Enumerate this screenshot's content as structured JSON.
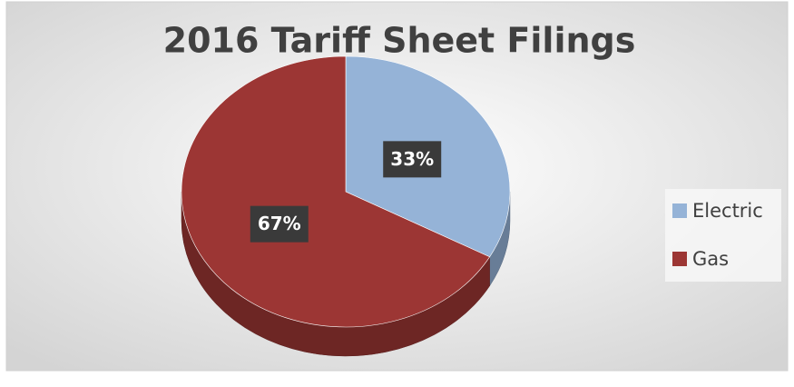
{
  "chart_data": {
    "type": "pie",
    "title": "2016 Tariff Sheet Filings",
    "categories": [
      "Electric",
      "Gas"
    ],
    "values": [
      33,
      67
    ],
    "value_labels": [
      "33%",
      "67%"
    ],
    "colors": [
      "#95b3d7",
      "#9c3634"
    ],
    "legend": "right"
  }
}
